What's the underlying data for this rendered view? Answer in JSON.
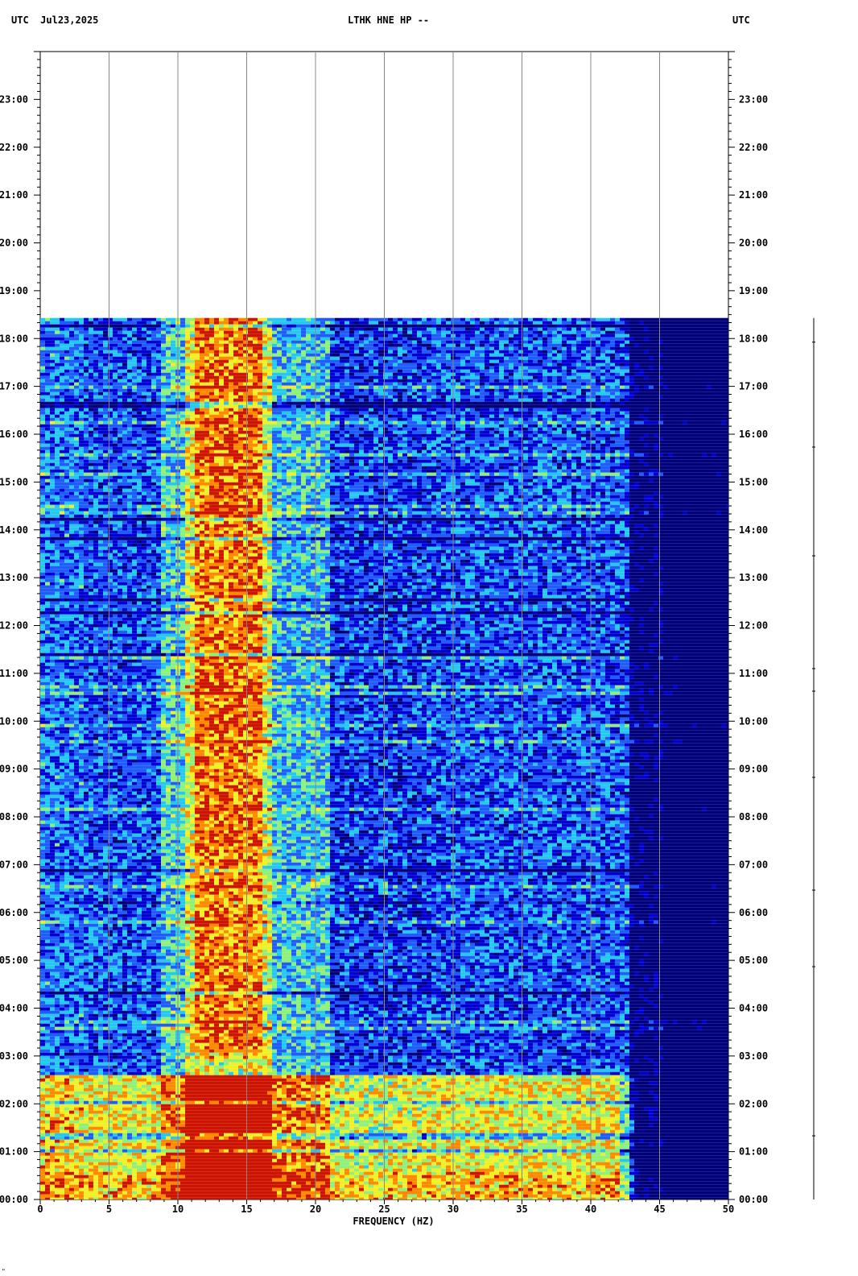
{
  "header": {
    "left_timezone": "UTC",
    "date": "Jul23,2025",
    "station": "LTHK HNE HP --",
    "right_timezone": "UTC"
  },
  "chart_data": {
    "type": "heatmap",
    "title": "LTHK HNE HP --",
    "date": "Jul23,2025",
    "xlabel": "FREQUENCY (HZ)",
    "ylabel": "UTC",
    "xlim": [
      0,
      50
    ],
    "ylim_hours": [
      0,
      24
    ],
    "x_ticks": [
      0,
      5,
      10,
      15,
      20,
      25,
      30,
      35,
      40,
      45,
      50
    ],
    "x_tick_labels": [
      "0",
      "5",
      "10",
      "15",
      "20",
      "25",
      "30",
      "35",
      "40",
      "45",
      "50"
    ],
    "y_ticks_hours": [
      0,
      1,
      2,
      3,
      4,
      5,
      6,
      7,
      8,
      9,
      10,
      11,
      12,
      13,
      14,
      15,
      16,
      17,
      18,
      19,
      20,
      21,
      22,
      23
    ],
    "y_tick_labels": [
      "00:00",
      "01:00",
      "02:00",
      "03:00",
      "04:00",
      "05:00",
      "06:00",
      "07:00",
      "08:00",
      "09:00",
      "10:00",
      "11:00",
      "12:00",
      "13:00",
      "14:00",
      "15:00",
      "16:00",
      "17:00",
      "18:00",
      "19:00",
      "20:00",
      "21:00",
      "22:00",
      "23:00"
    ],
    "data_end_hour": 18.43,
    "colormap": [
      "#00007a",
      "#0000d0",
      "#1e5cff",
      "#25c8f0",
      "#8ff07a",
      "#f0f028",
      "#ff8a00",
      "#cc1400"
    ],
    "features": [
      {
        "x_range": [
          11,
          16
        ],
        "y_range": [
          3,
          18.43
        ],
        "level": "high"
      },
      {
        "x_range": [
          0,
          42
        ],
        "y_range": [
          0,
          2.6
        ],
        "level": "high"
      },
      {
        "x_range": [
          45,
          50
        ],
        "y_range": [
          0,
          18.43
        ],
        "level": "low"
      },
      {
        "x_range": [
          19.5,
          21
        ],
        "y_range": [
          6.6,
          6.75
        ],
        "level": "high"
      },
      {
        "x_range": [
          24.3,
          25
        ],
        "y_range": [
          6.4,
          6.7
        ],
        "level": "high"
      }
    ],
    "grid": true
  },
  "footer": {
    "corner_mark": "\""
  }
}
